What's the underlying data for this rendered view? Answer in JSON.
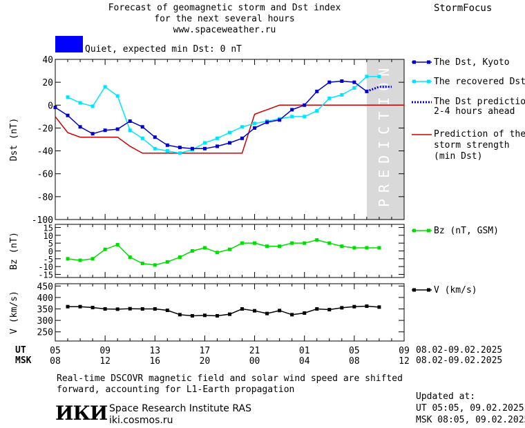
{
  "header": {
    "title_line1": "Forecast of geomagnetic storm and Dst index",
    "title_line2": "for the next several hours",
    "title_line3": "www.spaceweather.ru",
    "brand": "StormFocus",
    "status_text": "Quiet, expected min Dst: 0 nT",
    "status_color": "#0000ff"
  },
  "legend": {
    "dst_kyoto": "The Dst, Kyoto",
    "dst_recovered": "The recovered Dst",
    "dst_prediction_line1": "The Dst prediction",
    "dst_prediction_line2": "2-4 hours ahead",
    "storm_line1": "Prediction of the",
    "storm_line2": "storm strength",
    "storm_line3": "(min Dst)",
    "bz": "Bz (nT, GSM)",
    "v": "V (km/s)"
  },
  "prediction_label": "PREDICTION",
  "time_axis": {
    "ut_label": "UT",
    "msk_label": "MSK",
    "ut_ticks": [
      "05",
      "09",
      "13",
      "17",
      "21",
      "01",
      "05",
      "09"
    ],
    "msk_ticks": [
      "08",
      "12",
      "16",
      "20",
      "00",
      "04",
      "08",
      "12"
    ],
    "ut_range": "08.02-09.02.2025",
    "msk_range": "08.02-09.02.2025"
  },
  "footer": {
    "note_line1": "Real-time DSCOVR magnetic field and solar wind speed are shifted",
    "note_line2": "forward, accounting for L1-Earth propagation",
    "institute": "Space Research Institute RAS",
    "site": "iki.cosmos.ru",
    "logo_text": "ИКИ",
    "updated_label": "Updated at:",
    "updated_ut": "UT   05:05, 09.02.2025",
    "updated_msk": "MSK 08:05, 09.02.2025"
  },
  "colors": {
    "kyoto": "#0000cc",
    "recovered": "#00e5ff",
    "prediction": "#0000cc",
    "storm": "#cc0000",
    "bz": "#00dd00",
    "v": "#000000",
    "prediction_zone": "#d9d9d9"
  },
  "chart_data": [
    {
      "type": "line",
      "ylabel": "Dst (nT)",
      "ylim": [
        -100,
        40
      ],
      "yticks": [
        40,
        20,
        0,
        -20,
        -40,
        -60,
        -80,
        -100
      ],
      "xlim": [
        0,
        28
      ],
      "series": [
        {
          "name": "The Dst, Kyoto",
          "x": [
            0,
            1,
            2,
            3,
            4,
            5,
            6,
            7,
            8,
            9,
            10,
            11,
            12,
            13,
            14,
            15,
            16,
            17,
            18,
            19,
            20,
            21,
            22,
            23,
            24,
            25
          ],
          "values": [
            -2,
            -9,
            -19,
            -25,
            -22,
            -21,
            -14,
            -19,
            -28,
            -35,
            -37,
            -38,
            -38,
            -36,
            -33,
            -29,
            -20,
            -15,
            -13,
            -4,
            0,
            12,
            20,
            21,
            20,
            12
          ]
        },
        {
          "name": "The recovered Dst",
          "x": [
            1,
            2,
            3,
            4,
            5,
            6,
            7,
            8,
            9,
            10,
            11,
            12,
            13,
            14,
            15,
            16,
            17,
            18,
            19,
            20,
            21,
            22,
            23,
            24,
            25,
            26
          ],
          "values": [
            7,
            2,
            -1,
            16,
            8,
            -22,
            -29,
            -38,
            -40,
            -42,
            -39,
            -33,
            -29,
            -24,
            -19,
            -16,
            -14,
            -12,
            -10,
            -10,
            -5,
            6,
            9,
            15,
            25,
            25
          ]
        },
        {
          "name": "The Dst prediction 2-4 hours ahead",
          "x": [
            25,
            26,
            27
          ],
          "values": [
            12,
            16,
            16
          ]
        },
        {
          "name": "Prediction of the storm strength (min Dst)",
          "x": [
            0,
            1,
            2,
            3,
            4,
            5,
            6,
            7,
            8,
            9,
            10,
            11,
            12,
            13,
            14,
            15,
            16,
            17,
            18,
            19,
            20,
            21,
            22,
            23,
            24,
            25,
            26,
            27,
            28
          ],
          "values": [
            -10,
            -24,
            -28,
            -28,
            -28,
            -28,
            -36,
            -42,
            -42,
            -42,
            -42,
            -42,
            -42,
            -42,
            -42,
            -42,
            -8,
            -4,
            0,
            0,
            0,
            0,
            0,
            0,
            0,
            0,
            0,
            0,
            0
          ]
        }
      ],
      "prediction_zone": [
        25,
        28
      ]
    },
    {
      "type": "line",
      "ylabel": "Bz (nT)",
      "ylim": [
        -17,
        17
      ],
      "yticks": [
        15,
        10,
        5,
        0,
        -5,
        -10,
        -15
      ],
      "xlim": [
        0,
        28
      ],
      "series": [
        {
          "name": "Bz (nT, GSM)",
          "x": [
            1,
            2,
            3,
            4,
            5,
            6,
            7,
            8,
            9,
            10,
            11,
            12,
            13,
            14,
            15,
            16,
            17,
            18,
            19,
            20,
            21,
            22,
            23,
            24,
            25,
            26
          ],
          "values": [
            -5,
            -6,
            -5,
            1,
            4,
            -4,
            -8,
            -9,
            -7,
            -4,
            0,
            2,
            -1,
            1,
            5,
            5,
            3,
            3,
            5,
            5,
            7,
            5,
            3,
            2,
            2,
            2
          ]
        }
      ]
    },
    {
      "type": "line",
      "ylabel": "V (km/s)",
      "ylim": [
        210,
        460
      ],
      "yticks": [
        450,
        400,
        350,
        300,
        250
      ],
      "xlim": [
        0,
        28
      ],
      "series": [
        {
          "name": "V (km/s)",
          "x": [
            1,
            2,
            3,
            4,
            5,
            6,
            7,
            8,
            9,
            10,
            11,
            12,
            13,
            14,
            15,
            16,
            17,
            18,
            19,
            20,
            21,
            22,
            23,
            24,
            25,
            26
          ],
          "values": [
            360,
            360,
            356,
            350,
            349,
            351,
            350,
            350,
            344,
            325,
            320,
            322,
            320,
            327,
            350,
            342,
            330,
            343,
            325,
            332,
            350,
            347,
            355,
            360,
            362,
            358
          ]
        }
      ]
    }
  ]
}
